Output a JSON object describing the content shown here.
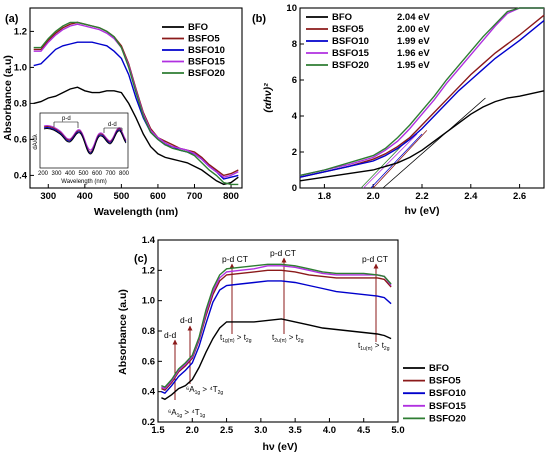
{
  "chart_data": [
    {
      "type": "line",
      "panel_label": "(a)",
      "xlabel": "Wavelength (nm)",
      "ylabel": "Absorbance (a.u)",
      "xlim": [
        250,
        830
      ],
      "ylim": [
        0.33,
        1.33
      ],
      "xticks": [
        "300",
        "400",
        "500",
        "600",
        "700",
        "800"
      ],
      "yticks": [
        "0.4",
        "0.6",
        "0.8",
        "1.0",
        "1.2"
      ],
      "legend_position": "top-right",
      "series": [
        {
          "name": "BFO",
          "color": "#000000",
          "x": [
            260,
            280,
            300,
            320,
            340,
            360,
            380,
            400,
            420,
            440,
            460,
            480,
            500,
            520,
            540,
            560,
            580,
            600,
            620,
            640,
            660,
            680,
            700,
            720,
            740,
            760,
            780,
            800,
            820
          ],
          "y": [
            0.8,
            0.81,
            0.83,
            0.84,
            0.86,
            0.88,
            0.89,
            0.87,
            0.86,
            0.86,
            0.87,
            0.87,
            0.86,
            0.8,
            0.72,
            0.63,
            0.56,
            0.52,
            0.5,
            0.49,
            0.48,
            0.47,
            0.45,
            0.43,
            0.4,
            0.37,
            0.35,
            0.36,
            0.39
          ]
        },
        {
          "name": "BSFO5",
          "color": "#8B1A1A",
          "x": [
            260,
            280,
            300,
            320,
            340,
            360,
            380,
            400,
            420,
            440,
            460,
            480,
            500,
            520,
            540,
            560,
            580,
            600,
            620,
            640,
            660,
            680,
            700,
            720,
            740,
            760,
            780,
            800,
            820
          ],
          "y": [
            1.1,
            1.1,
            1.15,
            1.19,
            1.22,
            1.24,
            1.25,
            1.24,
            1.23,
            1.22,
            1.2,
            1.17,
            1.12,
            1.02,
            0.88,
            0.75,
            0.66,
            0.61,
            0.59,
            0.57,
            0.55,
            0.54,
            0.53,
            0.5,
            0.46,
            0.43,
            0.4,
            0.41,
            0.43
          ]
        },
        {
          "name": "BSFO10",
          "color": "#0000CC",
          "x": [
            260,
            280,
            300,
            320,
            340,
            360,
            380,
            400,
            420,
            440,
            460,
            480,
            500,
            520,
            540,
            560,
            580,
            600,
            620,
            640,
            660,
            680,
            700,
            720,
            740,
            760,
            780,
            800,
            820
          ],
          "y": [
            1.01,
            1.02,
            1.06,
            1.1,
            1.12,
            1.13,
            1.14,
            1.14,
            1.14,
            1.13,
            1.12,
            1.09,
            1.05,
            0.96,
            0.83,
            0.72,
            0.64,
            0.6,
            0.57,
            0.56,
            0.54,
            0.53,
            0.52,
            0.49,
            0.45,
            0.42,
            0.38,
            0.39,
            0.4
          ]
        },
        {
          "name": "BSFO15",
          "color": "#B030E0",
          "x": [
            260,
            280,
            300,
            320,
            340,
            360,
            380,
            400,
            420,
            440,
            460,
            480,
            500,
            520,
            540,
            560,
            580,
            600,
            620,
            640,
            660,
            680,
            700,
            720,
            740,
            760,
            780,
            800,
            820
          ],
          "y": [
            1.09,
            1.09,
            1.14,
            1.18,
            1.21,
            1.23,
            1.24,
            1.23,
            1.22,
            1.21,
            1.19,
            1.16,
            1.11,
            1.01,
            0.87,
            0.74,
            0.65,
            0.61,
            0.58,
            0.56,
            0.55,
            0.54,
            0.52,
            0.49,
            0.45,
            0.42,
            0.39,
            0.4,
            0.42
          ]
        },
        {
          "name": "BSFO20",
          "color": "#2E7D32",
          "x": [
            260,
            280,
            300,
            320,
            340,
            360,
            380,
            400,
            420,
            440,
            460,
            480,
            500,
            520,
            540,
            560,
            580,
            600,
            620,
            640,
            660,
            680,
            700,
            720,
            740,
            760,
            780,
            800,
            820
          ],
          "y": [
            1.11,
            1.11,
            1.16,
            1.2,
            1.23,
            1.25,
            1.25,
            1.24,
            1.23,
            1.22,
            1.2,
            1.17,
            1.11,
            1.0,
            0.86,
            0.73,
            0.64,
            0.6,
            0.57,
            0.55,
            0.54,
            0.53,
            0.51,
            0.47,
            0.43,
            0.4,
            0.36,
            0.35,
            0.35
          ]
        }
      ],
      "inset": {
        "xlabel": "Wavelength (nm)",
        "ylabel": "dA/dλ",
        "xticks": [
          "200",
          "300",
          "400",
          "500",
          "600",
          "700",
          "800"
        ],
        "annotations": [
          "p-d",
          "d-d"
        ]
      }
    },
    {
      "type": "line",
      "panel_label": "(b)",
      "xlabel": "hν (eV)",
      "ylabel": "(αhν)²",
      "xlim": [
        1.7,
        2.7
      ],
      "ylim": [
        0,
        10
      ],
      "xticks": [
        "1.8",
        "2.0",
        "2.2",
        "2.4",
        "2.6"
      ],
      "yticks": [
        "0",
        "2",
        "4",
        "6",
        "8",
        "10"
      ],
      "legend_position": "top-left",
      "band_gaps": [
        "2.04 eV",
        "2.00 eV",
        "1.99 eV",
        "1.96 eV",
        "1.95 eV"
      ],
      "series": [
        {
          "name": "BFO",
          "color": "#000000",
          "x": [
            1.7,
            1.8,
            1.9,
            2.0,
            2.05,
            2.1,
            2.15,
            2.2,
            2.25,
            2.3,
            2.35,
            2.4,
            2.45,
            2.5,
            2.55,
            2.6,
            2.7
          ],
          "y": [
            0.4,
            0.6,
            0.8,
            1.0,
            1.2,
            1.4,
            1.7,
            2.1,
            2.6,
            3.1,
            3.6,
            4.1,
            4.5,
            4.8,
            5.0,
            5.1,
            5.4
          ]
        },
        {
          "name": "BSFO5",
          "color": "#8B1A1A",
          "x": [
            1.7,
            1.8,
            1.9,
            2.0,
            2.05,
            2.1,
            2.15,
            2.2,
            2.25,
            2.3,
            2.35,
            2.4,
            2.45,
            2.5,
            2.55,
            2.6,
            2.7
          ],
          "y": [
            0.6,
            0.9,
            1.2,
            1.6,
            1.9,
            2.3,
            2.8,
            3.5,
            4.2,
            4.9,
            5.6,
            6.3,
            6.9,
            7.5,
            8.0,
            8.5,
            9.6
          ]
        },
        {
          "name": "BSFO10",
          "color": "#0000CC",
          "x": [
            1.7,
            1.8,
            1.9,
            2.0,
            2.05,
            2.1,
            2.15,
            2.2,
            2.25,
            2.3,
            2.35,
            2.4,
            2.45,
            2.5,
            2.55,
            2.6,
            2.7
          ],
          "y": [
            0.6,
            0.9,
            1.2,
            1.5,
            1.8,
            2.2,
            2.7,
            3.3,
            4.0,
            4.7,
            5.4,
            6.0,
            6.6,
            7.2,
            7.7,
            8.2,
            9.3
          ]
        },
        {
          "name": "BSFO15",
          "color": "#B030E0",
          "x": [
            1.7,
            1.8,
            1.9,
            2.0,
            2.05,
            2.1,
            2.15,
            2.2,
            2.25,
            2.3,
            2.35,
            2.4,
            2.45,
            2.5,
            2.55,
            2.6,
            2.7
          ],
          "y": [
            0.7,
            1.0,
            1.3,
            1.7,
            2.1,
            2.6,
            3.3,
            4.1,
            4.9,
            5.8,
            6.6,
            7.4,
            8.2,
            9.0,
            9.7,
            10.0,
            10.0
          ]
        },
        {
          "name": "BSFO20",
          "color": "#2E7D32",
          "x": [
            1.7,
            1.8,
            1.9,
            2.0,
            2.05,
            2.1,
            2.15,
            2.2,
            2.25,
            2.3,
            2.35,
            2.4,
            2.45,
            2.5,
            2.55,
            2.6,
            2.7
          ],
          "y": [
            0.7,
            1.0,
            1.4,
            1.8,
            2.2,
            2.8,
            3.5,
            4.3,
            5.1,
            6.0,
            6.8,
            7.6,
            8.4,
            9.1,
            9.8,
            10.0,
            10.0
          ]
        }
      ]
    },
    {
      "type": "line",
      "panel_label": "(c)",
      "xlabel": "hν (eV)",
      "ylabel": "Absorbance (a.u)",
      "xlim": [
        1.5,
        5.0
      ],
      "ylim": [
        0.2,
        1.4
      ],
      "xticks": [
        "1.5",
        "2.0",
        "2.5",
        "3.0",
        "3.5",
        "4.0",
        "4.5",
        "5.0"
      ],
      "yticks": [
        "0.2",
        "0.4",
        "0.6",
        "0.8",
        "1.0",
        "1.2",
        "1.4"
      ],
      "legend_position": "bottom-right",
      "annotations": [
        "d-d",
        "d-d",
        "p-d CT",
        "p-d CT",
        "p-d CT"
      ],
      "series": [
        {
          "name": "BFO",
          "color": "#000000",
          "x": [
            1.55,
            1.6,
            1.7,
            1.8,
            1.9,
            2.0,
            2.1,
            2.2,
            2.3,
            2.4,
            2.5,
            2.7,
            2.9,
            3.1,
            3.3,
            3.5,
            3.7,
            3.9,
            4.1,
            4.3,
            4.5,
            4.7,
            4.8,
            4.9
          ],
          "y": [
            0.36,
            0.35,
            0.38,
            0.42,
            0.44,
            0.48,
            0.56,
            0.66,
            0.75,
            0.82,
            0.86,
            0.86,
            0.86,
            0.87,
            0.88,
            0.86,
            0.84,
            0.82,
            0.81,
            0.8,
            0.79,
            0.78,
            0.77,
            0.75
          ]
        },
        {
          "name": "BSFO5",
          "color": "#8B1A1A",
          "x": [
            1.55,
            1.6,
            1.7,
            1.8,
            1.9,
            2.0,
            2.1,
            2.2,
            2.3,
            2.4,
            2.5,
            2.7,
            2.9,
            3.1,
            3.3,
            3.5,
            3.7,
            3.9,
            4.1,
            4.3,
            4.5,
            4.7,
            4.8,
            4.9
          ],
          "y": [
            0.42,
            0.41,
            0.46,
            0.53,
            0.57,
            0.62,
            0.74,
            0.9,
            1.04,
            1.13,
            1.17,
            1.18,
            1.19,
            1.2,
            1.2,
            1.19,
            1.17,
            1.16,
            1.15,
            1.15,
            1.15,
            1.15,
            1.14,
            1.09
          ]
        },
        {
          "name": "BSFO10",
          "color": "#0000CC",
          "x": [
            1.55,
            1.6,
            1.7,
            1.8,
            1.9,
            2.0,
            2.1,
            2.2,
            2.3,
            2.4,
            2.5,
            2.7,
            2.9,
            3.1,
            3.3,
            3.5,
            3.7,
            3.9,
            4.1,
            4.3,
            4.5,
            4.7,
            4.8,
            4.9
          ],
          "y": [
            0.4,
            0.39,
            0.44,
            0.5,
            0.54,
            0.59,
            0.7,
            0.85,
            0.99,
            1.07,
            1.1,
            1.11,
            1.12,
            1.13,
            1.13,
            1.12,
            1.1,
            1.08,
            1.06,
            1.05,
            1.04,
            1.03,
            1.02,
            0.98
          ]
        },
        {
          "name": "BSFO15",
          "color": "#B030E0",
          "x": [
            1.55,
            1.6,
            1.7,
            1.8,
            1.9,
            2.0,
            2.1,
            2.2,
            2.3,
            2.4,
            2.5,
            2.7,
            2.9,
            3.1,
            3.3,
            3.5,
            3.7,
            3.9,
            4.1,
            4.3,
            4.5,
            4.7,
            4.8,
            4.9
          ],
          "y": [
            0.43,
            0.42,
            0.47,
            0.54,
            0.58,
            0.63,
            0.75,
            0.92,
            1.06,
            1.15,
            1.19,
            1.2,
            1.21,
            1.23,
            1.23,
            1.22,
            1.2,
            1.18,
            1.17,
            1.17,
            1.17,
            1.17,
            1.16,
            1.1
          ]
        },
        {
          "name": "BSFO20",
          "color": "#2E7D32",
          "x": [
            1.55,
            1.6,
            1.7,
            1.8,
            1.9,
            2.0,
            2.1,
            2.2,
            2.3,
            2.4,
            2.5,
            2.7,
            2.9,
            3.1,
            3.3,
            3.5,
            3.7,
            3.9,
            4.1,
            4.3,
            4.5,
            4.7,
            4.8,
            4.9
          ],
          "y": [
            0.44,
            0.43,
            0.48,
            0.55,
            0.59,
            0.64,
            0.76,
            0.94,
            1.08,
            1.17,
            1.21,
            1.22,
            1.23,
            1.24,
            1.24,
            1.23,
            1.21,
            1.19,
            1.18,
            1.18,
            1.18,
            1.17,
            1.16,
            1.11
          ]
        }
      ]
    }
  ]
}
